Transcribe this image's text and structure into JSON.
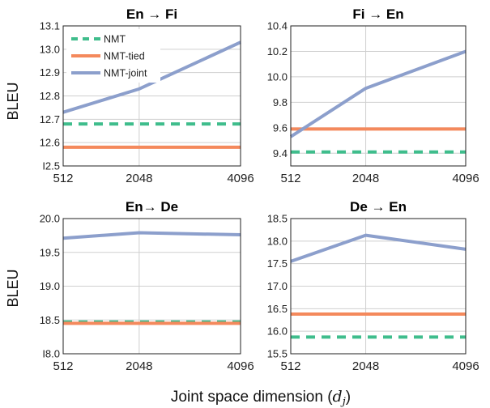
{
  "chart_data": [
    {
      "type": "line",
      "title": "En → Fi",
      "xlabel": "",
      "ylabel": "BLEU",
      "x": [
        512,
        2048,
        4096
      ],
      "x_tick_labels": [
        "512",
        "2048",
        "4096"
      ],
      "ylim": [
        12.5,
        13.1
      ],
      "y_ticks": [
        12.5,
        12.6,
        12.7,
        12.8,
        12.9,
        13.0,
        13.1
      ],
      "y_tick_labels": [
        "I2.5",
        "12.6",
        "12.7",
        "12.8",
        "12.9",
        "13.0",
        "13.1"
      ],
      "grid": true,
      "legend": "top-left",
      "series": [
        {
          "name": "NMT",
          "values": [
            12.68,
            12.68,
            12.68
          ],
          "style": "dashed"
        },
        {
          "name": "NMT-tied",
          "values": [
            12.58,
            12.58,
            12.58
          ],
          "style": "solid"
        },
        {
          "name": "NMT-joint",
          "values": [
            12.73,
            12.83,
            13.03
          ],
          "style": "solid"
        }
      ]
    },
    {
      "type": "line",
      "title": "Fi → En",
      "xlabel": "",
      "ylabel": "",
      "x": [
        512,
        2048,
        4096
      ],
      "x_tick_labels": [
        "512",
        "2048",
        "4096"
      ],
      "ylim": [
        9.3,
        10.4
      ],
      "y_ticks": [
        9.4,
        9.6,
        9.8,
        10.0,
        10.2,
        10.4
      ],
      "y_tick_labels": [
        "9.4",
        "9.6",
        "9.8",
        "10.0",
        "10.2",
        "10.4"
      ],
      "grid": true,
      "series": [
        {
          "name": "NMT",
          "values": [
            9.41,
            9.41,
            9.41
          ],
          "style": "dashed"
        },
        {
          "name": "NMT-tied",
          "values": [
            9.59,
            9.59,
            9.59
          ],
          "style": "solid"
        },
        {
          "name": "NMT-joint",
          "values": [
            9.53,
            9.91,
            10.2
          ],
          "style": "solid"
        }
      ]
    },
    {
      "type": "line",
      "title": "En→ De",
      "xlabel": "",
      "ylabel": "BLEU",
      "x": [
        512,
        2048,
        4096
      ],
      "x_tick_labels": [
        "512",
        "2048",
        "4096"
      ],
      "ylim": [
        18.0,
        20.0
      ],
      "y_ticks": [
        18.0,
        18.5,
        19.0,
        19.5,
        20.0
      ],
      "y_tick_labels": [
        "I8.0",
        "18.5",
        "19.0",
        "19.5",
        "20.0"
      ],
      "grid": true,
      "series": [
        {
          "name": "NMT",
          "values": [
            18.47,
            18.47,
            18.47
          ],
          "style": "dashed"
        },
        {
          "name": "NMT-tied",
          "values": [
            18.45,
            18.45,
            18.45
          ],
          "style": "solid"
        },
        {
          "name": "NMT-joint",
          "values": [
            19.71,
            19.79,
            19.76
          ],
          "style": "solid"
        }
      ]
    },
    {
      "type": "line",
      "title": "De → En",
      "xlabel": "",
      "ylabel": "",
      "x": [
        512,
        2048,
        4096
      ],
      "x_tick_labels": [
        "512",
        "2048",
        "4096"
      ],
      "ylim": [
        15.5,
        18.5
      ],
      "y_ticks": [
        15.5,
        16.0,
        16.5,
        17.0,
        17.5,
        18.0,
        18.5
      ],
      "y_tick_labels": [
        "15.5",
        "16.0",
        "16.5",
        "17.0",
        "17.5",
        "18.0",
        "18.5"
      ],
      "grid": true,
      "series": [
        {
          "name": "NMT",
          "values": [
            15.87,
            15.87,
            15.87
          ],
          "style": "dashed"
        },
        {
          "name": "NMT-tied",
          "values": [
            16.38,
            16.38,
            16.38
          ],
          "style": "solid"
        },
        {
          "name": "NMT-joint",
          "values": [
            17.55,
            18.13,
            17.82
          ],
          "style": "solid"
        }
      ]
    }
  ],
  "shared_xlabel": "Joint space dimension (d_j)",
  "shared_xlabel_main": "Joint space dimension (",
  "shared_xlabel_symbol": "d",
  "shared_xlabel_sub": "j",
  "shared_xlabel_close": ")",
  "colors": {
    "NMT": "#3fbd8c",
    "NMT-tied": "#f4895c",
    "NMT-joint": "#8c9fcc"
  }
}
